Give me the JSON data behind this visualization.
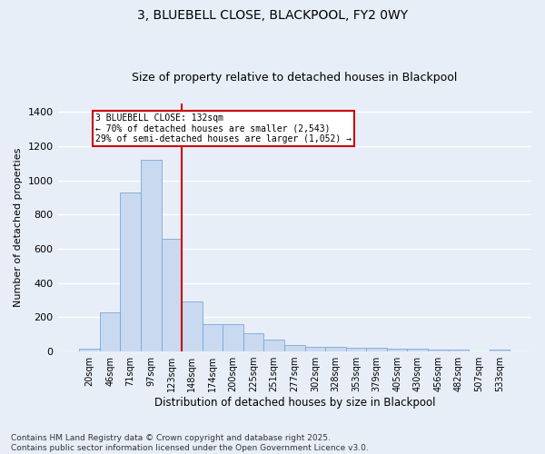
{
  "title": "3, BLUEBELL CLOSE, BLACKPOOL, FY2 0WY",
  "subtitle": "Size of property relative to detached houses in Blackpool",
  "xlabel": "Distribution of detached houses by size in Blackpool",
  "ylabel": "Number of detached properties",
  "categories": [
    "20sqm",
    "46sqm",
    "71sqm",
    "97sqm",
    "123sqm",
    "148sqm",
    "174sqm",
    "200sqm",
    "225sqm",
    "251sqm",
    "277sqm",
    "302sqm",
    "328sqm",
    "353sqm",
    "379sqm",
    "405sqm",
    "430sqm",
    "456sqm",
    "482sqm",
    "507sqm",
    "533sqm"
  ],
  "values": [
    15,
    230,
    930,
    1120,
    660,
    295,
    160,
    160,
    105,
    70,
    35,
    25,
    25,
    20,
    20,
    15,
    15,
    10,
    10,
    0,
    10
  ],
  "bar_color": "#c9d9f0",
  "bar_edge_color": "#7aa8d4",
  "vline_color": "#cc0000",
  "annotation_text": "3 BLUEBELL CLOSE: 132sqm\n← 70% of detached houses are smaller (2,543)\n29% of semi-detached houses are larger (1,052) →",
  "annotation_box_color": "#cc0000",
  "annotation_box_fill": "white",
  "ylim": [
    0,
    1450
  ],
  "yticks": [
    0,
    200,
    400,
    600,
    800,
    1000,
    1200,
    1400
  ],
  "footnote": "Contains HM Land Registry data © Crown copyright and database right 2025.\nContains public sector information licensed under the Open Government Licence v3.0.",
  "bg_color": "#e8eef8",
  "plot_bg_color": "#e8eef8",
  "grid_color": "#ffffff",
  "title_fontsize": 10,
  "subtitle_fontsize": 9,
  "footnote_fontsize": 6.5
}
